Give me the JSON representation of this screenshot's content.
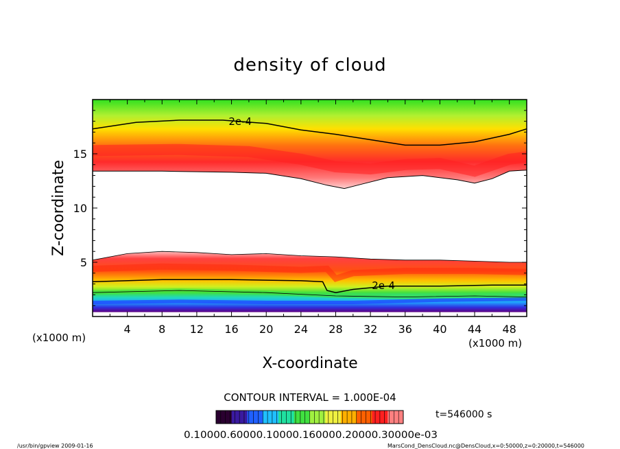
{
  "chart_data": {
    "type": "heatmap",
    "title": "density of cloud",
    "xlabel": "X-coordinate",
    "ylabel": "Z-coordinate",
    "x_unit": "(x1000 m)",
    "z_unit": "(x1000 m)",
    "xlim": [
      0,
      50
    ],
    "ylim": [
      0,
      20
    ],
    "x_ticks": [
      4,
      8,
      12,
      16,
      20,
      24,
      28,
      32,
      36,
      40,
      44,
      48
    ],
    "y_ticks": [
      5,
      10,
      15
    ],
    "contour_interval_text": "CONTOUR INTERVAL = 1.000E-04",
    "time_text": "t=546000 s",
    "colorbar_labels_text": "0.10000.60000.10000.160000.20000.30000e-03",
    "footer_left": "/usr/bin/gpview   2009-01-16",
    "footer_right": "MarsCond_DensCloud.nc@DensCloud,x=0:50000,z=0:20000,t=546000",
    "contour_labels": [
      {
        "text": "2e-4",
        "x": 17,
        "z": 17.9
      },
      {
        "text": "2e-4",
        "x": 33.5,
        "z": 2.8
      }
    ],
    "upper_layer": {
      "top_z": 20,
      "core_z": [
        [
          0,
          15.3
        ],
        [
          10,
          15.4
        ],
        [
          18,
          15.2
        ],
        [
          24,
          14.5
        ],
        [
          28,
          13.8
        ],
        [
          32,
          13.6
        ],
        [
          36,
          14.0
        ],
        [
          40,
          14.1
        ],
        [
          44,
          13.4
        ],
        [
          48,
          14.5
        ],
        [
          50,
          14.7
        ]
      ],
      "contour_2e4_z": [
        [
          0,
          17.3
        ],
        [
          5,
          17.9
        ],
        [
          10,
          18.1
        ],
        [
          15,
          18.1
        ],
        [
          20,
          17.8
        ],
        [
          24,
          17.2
        ],
        [
          28,
          16.8
        ],
        [
          32,
          16.3
        ],
        [
          36,
          15.8
        ],
        [
          40,
          15.8
        ],
        [
          44,
          16.1
        ],
        [
          48,
          16.8
        ],
        [
          50,
          17.3
        ]
      ],
      "lower_edge_z": [
        [
          0,
          13.4
        ],
        [
          8,
          13.4
        ],
        [
          16,
          13.3
        ],
        [
          20,
          13.2
        ],
        [
          24,
          12.7
        ],
        [
          27,
          12.1
        ],
        [
          29,
          11.8
        ],
        [
          31,
          12.2
        ],
        [
          34,
          12.8
        ],
        [
          38,
          13.0
        ],
        [
          42,
          12.6
        ],
        [
          44,
          12.3
        ],
        [
          46,
          12.7
        ],
        [
          48,
          13.4
        ],
        [
          50,
          13.5
        ]
      ]
    },
    "lower_layer": {
      "bottom_z": 0.4,
      "top_edge_z": [
        [
          0,
          5.2
        ],
        [
          4,
          5.8
        ],
        [
          8,
          6.0
        ],
        [
          12,
          5.9
        ],
        [
          16,
          5.7
        ],
        [
          20,
          5.8
        ],
        [
          24,
          5.6
        ],
        [
          28,
          5.5
        ],
        [
          32,
          5.3
        ],
        [
          36,
          5.2
        ],
        [
          40,
          5.2
        ],
        [
          44,
          5.1
        ],
        [
          48,
          5.0
        ],
        [
          50,
          5.0
        ]
      ],
      "core_z": [
        [
          0,
          4.4
        ],
        [
          8,
          4.6
        ],
        [
          16,
          4.5
        ],
        [
          24,
          4.3
        ],
        [
          27,
          4.4
        ],
        [
          28,
          3.5
        ],
        [
          30,
          4.0
        ],
        [
          36,
          4.2
        ],
        [
          44,
          4.2
        ],
        [
          50,
          4.1
        ]
      ],
      "contour_2e4_z": [
        [
          0,
          3.2
        ],
        [
          8,
          3.4
        ],
        [
          16,
          3.4
        ],
        [
          24,
          3.3
        ],
        [
          26.5,
          3.2
        ],
        [
          27,
          2.4
        ],
        [
          28,
          2.2
        ],
        [
          30,
          2.5
        ],
        [
          34,
          2.8
        ],
        [
          40,
          2.8
        ],
        [
          46,
          2.9
        ],
        [
          50,
          2.9
        ]
      ],
      "green_z": [
        [
          0,
          2.2
        ],
        [
          10,
          2.4
        ],
        [
          20,
          2.2
        ],
        [
          28,
          1.9
        ],
        [
          36,
          1.8
        ],
        [
          44,
          1.9
        ],
        [
          50,
          1.8
        ]
      ],
      "blue_z": [
        [
          0,
          1.3
        ],
        [
          10,
          1.4
        ],
        [
          20,
          1.3
        ],
        [
          30,
          1.3
        ],
        [
          40,
          1.5
        ],
        [
          50,
          1.6
        ]
      ]
    },
    "colorbar_colors": [
      "#2a0030",
      "#3a1aa0",
      "#2060ff",
      "#20c0ff",
      "#20e0a0",
      "#40e040",
      "#a0f040",
      "#f0f040",
      "#ffb000",
      "#ff6000",
      "#ff2020",
      "#ff8080"
    ]
  }
}
